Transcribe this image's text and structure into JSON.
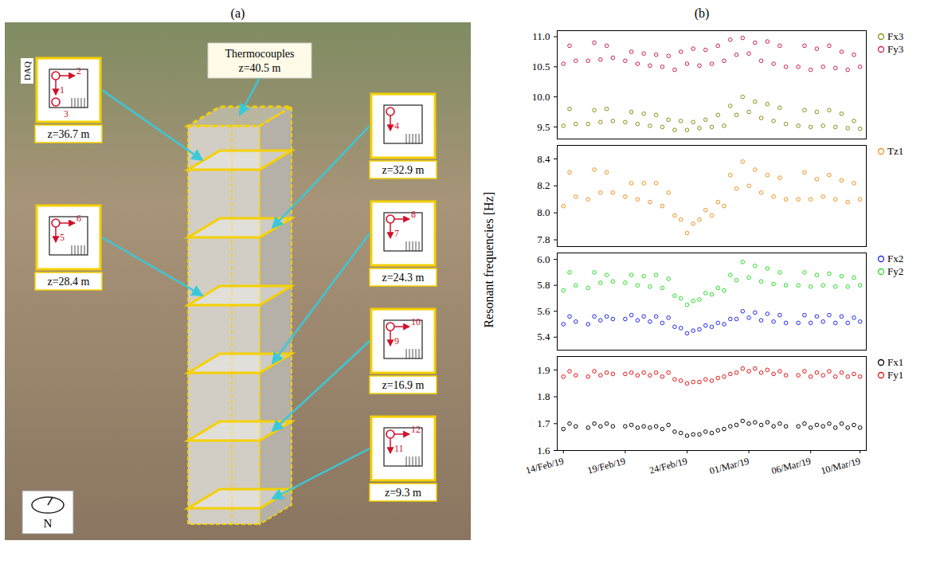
{
  "panel_a": {
    "label": "(a)",
    "thermocouples": {
      "label": "Thermocouples",
      "z": "z=40.5 m"
    },
    "daq": "DAQ",
    "north": "N",
    "sensor_boxes": [
      {
        "z": "z=36.7 m",
        "channels": [
          1,
          2,
          3
        ]
      },
      {
        "z": "z=32.9 m",
        "channels": [
          4
        ]
      },
      {
        "z": "z=28.4 m",
        "channels": [
          5,
          6
        ]
      },
      {
        "z": "z=24.3 m",
        "channels": [
          7,
          8
        ]
      },
      {
        "z": "z=16.9 m",
        "channels": [
          9,
          10
        ]
      },
      {
        "z": "z=9.3 m",
        "channels": [
          11,
          12
        ]
      }
    ]
  },
  "chart_data": {
    "type": "scatter",
    "title": "(b)",
    "ylabel": "Resonant frequencies [Hz]",
    "marker": "circle",
    "x": [
      "2019-02-14T00:00",
      "2019-02-14T12:00",
      "2019-02-15T00:00",
      "2019-02-15T12:00",
      "2019-02-16T00:00",
      "2019-02-16T12:00",
      "2019-02-17T00:00",
      "2019-02-17T12:00",
      "2019-02-18T00:00",
      "2019-02-18T12:00",
      "2019-02-19T00:00",
      "2019-02-19T12:00",
      "2019-02-20T00:00",
      "2019-02-20T12:00",
      "2019-02-21T00:00",
      "2019-02-21T12:00",
      "2019-02-22T00:00",
      "2019-02-22T12:00",
      "2019-02-23T00:00",
      "2019-02-23T12:00",
      "2019-02-24T00:00",
      "2019-02-24T12:00",
      "2019-02-25T00:00",
      "2019-02-25T12:00",
      "2019-02-26T00:00",
      "2019-02-26T12:00",
      "2019-02-27T00:00",
      "2019-02-27T12:00",
      "2019-02-28T00:00",
      "2019-02-28T12:00",
      "2019-03-01T00:00",
      "2019-03-01T12:00",
      "2019-03-02T00:00",
      "2019-03-02T12:00",
      "2019-03-03T00:00",
      "2019-03-03T12:00",
      "2019-03-04T00:00",
      "2019-03-04T12:00",
      "2019-03-05T00:00",
      "2019-03-05T12:00",
      "2019-03-06T00:00",
      "2019-03-06T12:00",
      "2019-03-07T00:00",
      "2019-03-07T12:00",
      "2019-03-08T00:00",
      "2019-03-08T12:00",
      "2019-03-09T00:00",
      "2019-03-09T12:00",
      "2019-03-10T00:00"
    ],
    "xlim": [
      "2019-02-13T12:00",
      "2019-03-10T12:00"
    ],
    "xticks": [
      {
        "value": "2019-02-14T00:00",
        "label": "14/Feb/19"
      },
      {
        "value": "2019-02-19T00:00",
        "label": "19/Feb/19"
      },
      {
        "value": "2019-02-24T00:00",
        "label": "24/Feb/19"
      },
      {
        "value": "2019-03-01T00:00",
        "label": "01/Mar/19"
      },
      {
        "value": "2019-03-06T00:00",
        "label": "06/Mar/19"
      },
      {
        "value": "2019-03-10T00:00",
        "label": "10/Mar/19"
      }
    ],
    "segments": [
      {
        "ylim": [
          9.3,
          11.1
        ],
        "yticks": [
          9.5,
          {
            "value": 10,
            "label": "10.0"
          },
          10.5,
          {
            "value": 11,
            "label": "11.0"
          }
        ],
        "series": [
          {
            "name": "Fx3",
            "color": "#8c8c14",
            "values": [
              9.52,
              9.8,
              9.55,
              null,
              9.55,
              9.78,
              9.58,
              9.8,
              9.6,
              null,
              9.58,
              9.75,
              9.55,
              9.72,
              9.52,
              9.7,
              9.5,
              9.62,
              9.45,
              9.6,
              9.45,
              9.58,
              9.48,
              9.62,
              9.5,
              9.7,
              9.52,
              9.85,
              9.7,
              10.0,
              9.75,
              9.92,
              9.65,
              9.88,
              9.6,
              9.82,
              9.55,
              null,
              9.52,
              9.78,
              9.5,
              9.75,
              9.52,
              9.78,
              9.5,
              9.72,
              9.48,
              9.6,
              9.47
            ]
          },
          {
            "name": "Fy3",
            "color": "#c81e5a",
            "values": [
              10.55,
              10.85,
              10.6,
              null,
              10.6,
              10.9,
              10.62,
              10.85,
              10.65,
              null,
              10.6,
              10.75,
              10.55,
              10.72,
              10.52,
              10.7,
              10.5,
              10.68,
              10.45,
              10.75,
              10.55,
              10.8,
              10.52,
              10.78,
              10.55,
              10.85,
              10.6,
              10.95,
              10.7,
              10.98,
              10.72,
              10.9,
              10.6,
              10.92,
              10.55,
              10.85,
              10.5,
              null,
              10.5,
              10.85,
              10.45,
              10.8,
              10.5,
              10.85,
              10.48,
              10.75,
              10.45,
              10.7,
              10.5
            ]
          }
        ]
      },
      {
        "ylim": [
          7.75,
          8.5
        ],
        "yticks": [
          7.8,
          {
            "value": 8,
            "label": "8.0"
          },
          8.2,
          8.4
        ],
        "series": [
          {
            "name": "Tz1",
            "color": "#f0901e",
            "values": [
              8.05,
              8.3,
              8.12,
              null,
              8.1,
              8.32,
              8.15,
              8.3,
              8.15,
              null,
              8.12,
              8.22,
              8.1,
              8.22,
              8.08,
              8.22,
              8.05,
              8.15,
              7.98,
              7.95,
              7.85,
              7.92,
              7.95,
              8.02,
              7.98,
              8.08,
              8.05,
              8.28,
              8.18,
              8.38,
              8.2,
              8.32,
              8.15,
              8.28,
              8.12,
              8.26,
              8.1,
              null,
              8.1,
              8.3,
              8.1,
              8.25,
              8.12,
              8.28,
              8.1,
              8.24,
              8.08,
              8.22,
              8.1
            ]
          }
        ]
      },
      {
        "ylim": [
          5.3,
          6.05
        ],
        "yticks": [
          5.4,
          5.6,
          5.8,
          {
            "value": 6,
            "label": "6.0"
          }
        ],
        "series": [
          {
            "name": "Fx2",
            "color": "#1e28e6",
            "values": [
              5.5,
              5.56,
              5.52,
              null,
              5.5,
              5.56,
              5.53,
              5.56,
              5.54,
              null,
              5.54,
              5.57,
              5.53,
              5.56,
              5.52,
              5.56,
              5.51,
              5.55,
              5.48,
              5.47,
              5.43,
              5.45,
              5.46,
              5.49,
              5.48,
              5.51,
              5.5,
              5.54,
              5.54,
              5.6,
              5.55,
              5.59,
              5.53,
              5.58,
              5.52,
              5.57,
              5.51,
              null,
              5.51,
              5.57,
              5.51,
              5.56,
              5.52,
              5.57,
              5.51,
              5.56,
              5.51,
              5.55,
              5.52
            ]
          },
          {
            "name": "Fy2",
            "color": "#28dc28",
            "values": [
              5.76,
              5.9,
              5.8,
              null,
              5.78,
              5.9,
              5.82,
              5.88,
              5.83,
              null,
              5.82,
              5.88,
              5.8,
              5.87,
              5.79,
              5.88,
              5.78,
              5.85,
              5.72,
              5.7,
              5.65,
              5.68,
              5.69,
              5.74,
              5.73,
              5.78,
              5.76,
              5.88,
              5.84,
              5.98,
              5.86,
              5.95,
              5.83,
              5.93,
              5.81,
              5.9,
              5.8,
              null,
              5.8,
              5.9,
              5.79,
              5.88,
              5.8,
              5.89,
              5.79,
              5.87,
              5.79,
              5.86,
              5.8
            ]
          }
        ]
      },
      {
        "ylim": [
          1.6,
          1.95
        ],
        "yticks": [
          1.6,
          1.7,
          1.8,
          1.9
        ],
        "series": [
          {
            "name": "Fx1",
            "color": "#000000",
            "values": [
              1.68,
              1.7,
              1.69,
              null,
              1.685,
              1.7,
              1.69,
              1.7,
              1.69,
              null,
              1.69,
              1.695,
              1.685,
              1.69,
              1.685,
              1.69,
              1.68,
              1.695,
              1.67,
              1.665,
              1.655,
              1.66,
              1.66,
              1.67,
              1.665,
              1.675,
              1.68,
              1.69,
              1.695,
              1.71,
              1.7,
              1.705,
              1.695,
              1.705,
              1.69,
              1.7,
              1.69,
              null,
              1.69,
              1.7,
              1.685,
              1.695,
              1.69,
              1.7,
              1.685,
              1.7,
              1.685,
              1.695,
              1.685
            ]
          },
          {
            "name": "Fy1",
            "color": "#e01414",
            "values": [
              1.875,
              1.895,
              1.88,
              null,
              1.875,
              1.895,
              1.88,
              1.89,
              1.885,
              null,
              1.885,
              1.89,
              1.88,
              1.89,
              1.88,
              1.89,
              1.875,
              1.89,
              1.865,
              1.86,
              1.85,
              1.855,
              1.855,
              1.865,
              1.86,
              1.87,
              1.875,
              1.885,
              1.89,
              1.905,
              1.895,
              1.905,
              1.89,
              1.9,
              1.885,
              1.895,
              1.88,
              null,
              1.88,
              1.895,
              1.875,
              1.89,
              1.88,
              1.895,
              1.875,
              1.89,
              1.875,
              1.885,
              1.875
            ]
          }
        ]
      }
    ]
  }
}
